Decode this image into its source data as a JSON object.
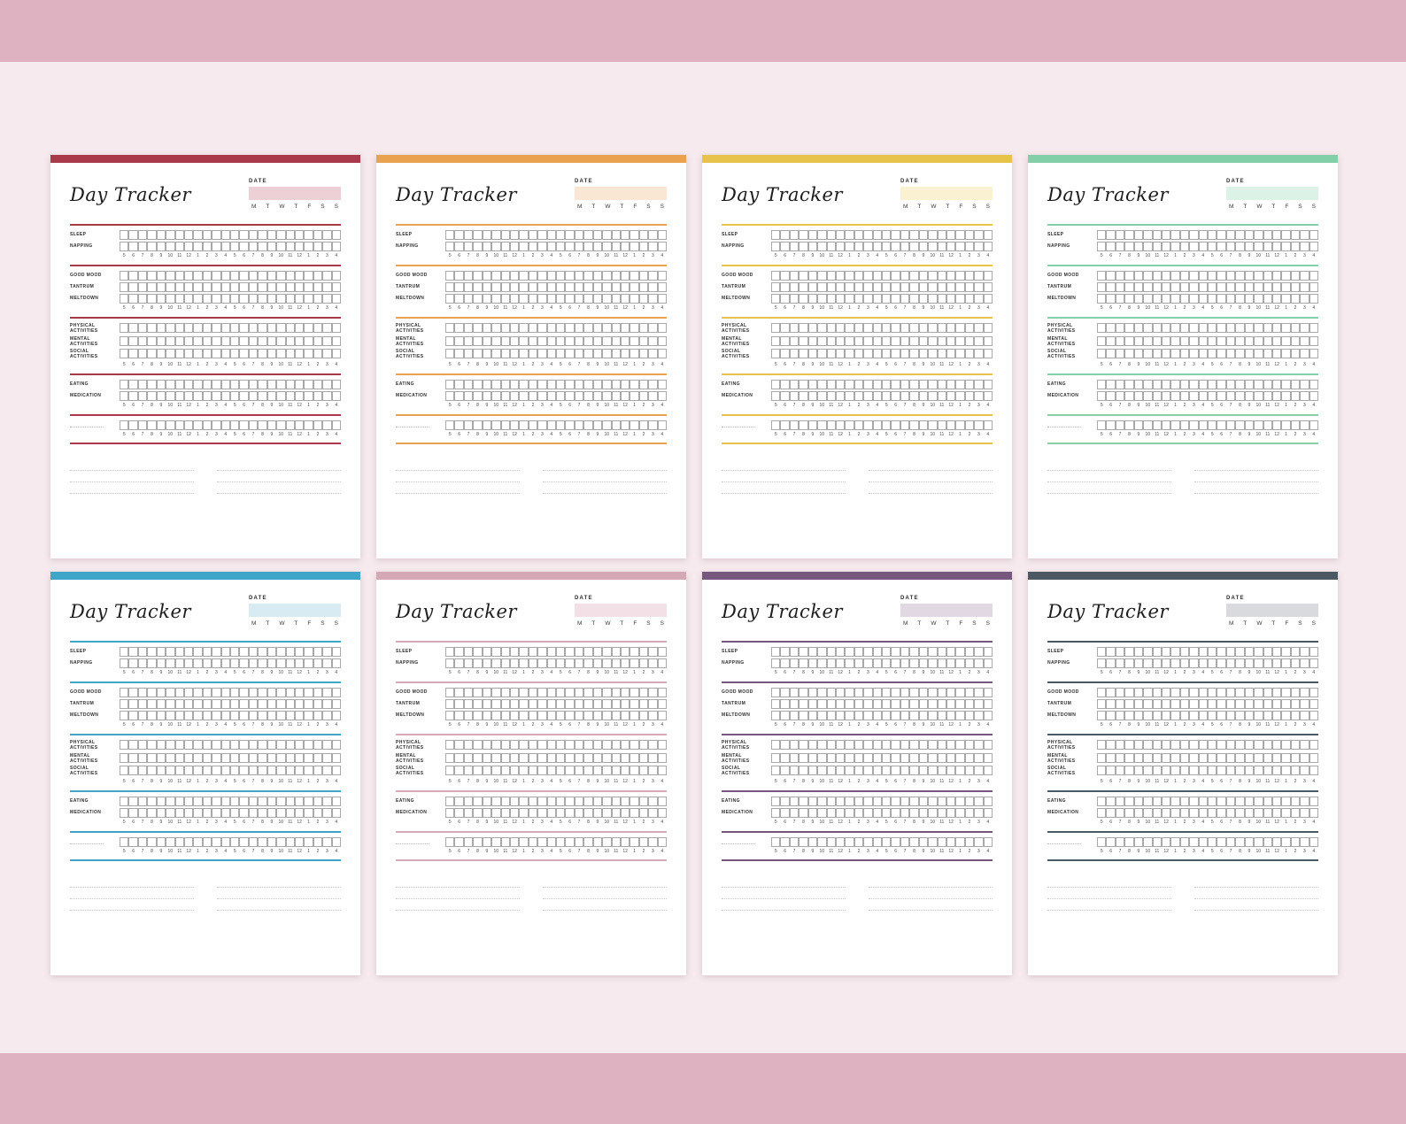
{
  "background": {
    "top_band": "#deb2c1",
    "middle": "#f6eaee",
    "bottom_band": "#deb2c1"
  },
  "page": {
    "title": "Day Tracker",
    "date_label": "DATE",
    "days": [
      "M",
      "T",
      "W",
      "T",
      "F",
      "S",
      "S"
    ],
    "hours": [
      "5",
      "6",
      "7",
      "8",
      "9",
      "10",
      "11",
      "12",
      "1",
      "2",
      "3",
      "4",
      "5",
      "6",
      "7",
      "8",
      "9",
      "10",
      "11",
      "12",
      "1",
      "2",
      "3",
      "4"
    ],
    "sections": [
      {
        "rows": [
          "SLEEP",
          "NAPPING"
        ]
      },
      {
        "rows": [
          "GOOD MOOD",
          "TANTRUM",
          "MELTDOWN"
        ]
      },
      {
        "rows": [
          "PHYSICAL ACTIVITIES",
          "MENTAL ACTIVITIES",
          "SOCIAL ACTIVITIES"
        ]
      },
      {
        "rows": [
          "EATING",
          "MEDICATION"
        ]
      },
      {
        "rows": [
          ""
        ]
      }
    ],
    "notes_columns": 2,
    "notes_lines_per_column": 3
  },
  "pages": [
    {
      "name": "crimson",
      "accent": "#a83a4b",
      "date_fill": "#ecd0d6"
    },
    {
      "name": "orange",
      "accent": "#e9a24f",
      "date_fill": "#fae7d3"
    },
    {
      "name": "yellow",
      "accent": "#e7c34c",
      "date_fill": "#faf0d2"
    },
    {
      "name": "mint",
      "accent": "#83cfa7",
      "date_fill": "#ddf2e6"
    },
    {
      "name": "blue",
      "accent": "#3fa5c9",
      "date_fill": "#d8eaf2"
    },
    {
      "name": "rose",
      "accent": "#d5a8b6",
      "date_fill": "#f2e0e6"
    },
    {
      "name": "purple",
      "accent": "#76577d",
      "date_fill": "#e2d8e3"
    },
    {
      "name": "slate",
      "accent": "#4c5862",
      "date_fill": "#d9dadd"
    }
  ]
}
